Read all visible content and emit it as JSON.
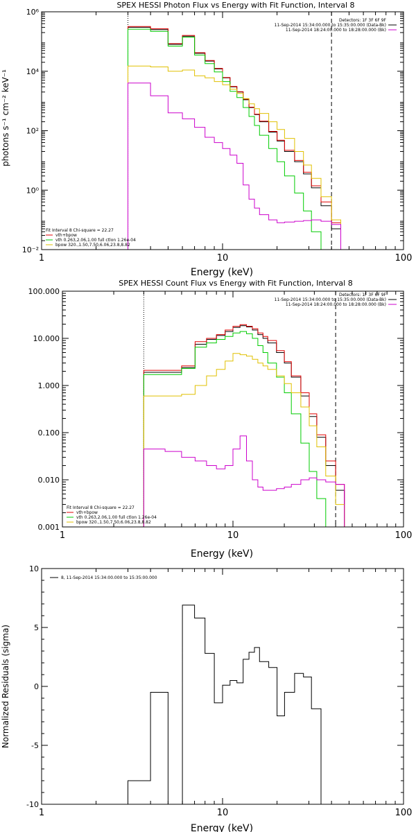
{
  "colors": {
    "data": "#000000",
    "total": "#e00000",
    "vth": "#00cc00",
    "bpow": "#e0c000",
    "bk": "#cc00cc"
  },
  "chart_data": [
    {
      "type": "line",
      "title": "SPEX HESSI Photon Flux vs Energy with Fit Function, Interval 8",
      "xlabel": "Energy (keV)",
      "ylabel": "photons s⁻¹ cm⁻² keV⁻¹",
      "xscale": "log",
      "yscale": "log",
      "xlim": [
        1,
        100
      ],
      "ylim": [
        0.01,
        1000000
      ],
      "xticks": [
        1,
        10,
        100
      ],
      "xtick_labels": [
        "1",
        "10",
        "100"
      ],
      "yticks": [
        0.01,
        1,
        100,
        10000,
        1000000
      ],
      "ytick_labels": [
        "10⁻²",
        "10⁰",
        "10²",
        "10⁴",
        "10⁶"
      ],
      "vlines": [
        {
          "x": 3,
          "style": "dotted"
        },
        {
          "x": 40,
          "style": "dashed"
        }
      ],
      "legend_top": {
        "header": "Detectors: 1F 3F 6F 9F",
        "entries": [
          "11-Sep-2014 15:34:00.000 to 15:35:00.000 (Data-Bk)",
          "11-Sep-2014 18:24:00.000 to 18:28:00.000 (Bk)"
        ]
      },
      "legend_bottom": {
        "header": "Fit Interval 8   Chi-square = 22.27",
        "entries": [
          "vth+bpow",
          "vth 0.263,2.06,1.00  full ctlon 1.26e-04",
          "bpow 320.,1.50,7.50,6.06,23.8,8.82"
        ]
      },
      "edges": [
        3,
        4,
        5,
        6,
        7,
        8,
        9,
        10,
        11,
        12,
        13,
        14,
        15,
        16,
        18,
        20,
        22,
        25,
        28,
        31,
        35,
        40,
        45,
        50
      ],
      "series": [
        {
          "key": "data",
          "values": [
            300000,
            250000,
            80000,
            150000,
            40000,
            22000,
            12000,
            6000,
            3000,
            2000,
            1100,
            600,
            350,
            200,
            90,
            45,
            20,
            9,
            3.5,
            1.2,
            0.3,
            0.05,
            null
          ]
        },
        {
          "key": "total",
          "values": [
            320000,
            270000,
            85000,
            160000,
            42000,
            23000,
            12500,
            6200,
            3100,
            2050,
            1150,
            620,
            360,
            210,
            95,
            48,
            22,
            10,
            4,
            1.4,
            0.4,
            0.08,
            0.01
          ]
        },
        {
          "key": "vth",
          "values": [
            260000,
            220000,
            70000,
            140000,
            35000,
            18000,
            9500,
            4500,
            2100,
            1300,
            600,
            300,
            150,
            70,
            25,
            9,
            3,
            0.8,
            0.2,
            0.04,
            0.01,
            null,
            null
          ]
        },
        {
          "key": "bpow",
          "values": [
            15000,
            14000,
            10000,
            11000,
            7000,
            6000,
            4500,
            3500,
            2500,
            1800,
            1200,
            800,
            550,
            380,
            200,
            110,
            55,
            20,
            7,
            2.5,
            0.6,
            0.1,
            0.01
          ]
        },
        {
          "key": "bk",
          "values": [
            4000,
            1500,
            400,
            250,
            130,
            60,
            40,
            25,
            15,
            8,
            1.5,
            0.5,
            0.25,
            0.15,
            0.1,
            0.08,
            0.085,
            0.09,
            0.095,
            0.1,
            0.09,
            0.07,
            null
          ]
        }
      ]
    },
    {
      "type": "line",
      "title": "SPEX HESSI Count Flux vs Energy with Fit Function, Interval 8",
      "xlabel": "Energy (keV)",
      "ylabel": "",
      "xscale": "log",
      "yscale": "log",
      "xlim": [
        1,
        100
      ],
      "ylim": [
        0.001,
        100
      ],
      "xticks": [
        1,
        10,
        100
      ],
      "xtick_labels": [
        "1",
        "10",
        "100"
      ],
      "yticks": [
        0.001,
        0.01,
        0.1,
        1,
        10,
        100
      ],
      "ytick_labels": [
        "0.001",
        "0.010",
        "0.100",
        "1.000",
        "10.000",
        "100.000"
      ],
      "vlines": [
        {
          "x": 3,
          "style": "dotted"
        },
        {
          "x": 40,
          "style": "dashed"
        }
      ],
      "legend_top": {
        "header": "Detectors: 1F 3F 6F 9F",
        "entries": [
          "11-Sep-2014 15:34:00.000 to 15:35:00.000 (Data-Bk)",
          "11-Sep-2014 18:24:00.000 to 18:28:00.000 (Bk)"
        ]
      },
      "legend_bottom": {
        "header": "Fit Interval 8   Chi-square = 22.27",
        "entries": [
          "vth+bpow",
          "vth 0.263,2.06,1.00  full ctlon 1.26e-04",
          "bpow 320.,1.50,7.50,6.06,23.8,8.82"
        ]
      },
      "edges": [
        3,
        4,
        5,
        6,
        7,
        8,
        9,
        10,
        11,
        12,
        13,
        14,
        15,
        16,
        18,
        20,
        22,
        25,
        28,
        31,
        35,
        40,
        45,
        50
      ],
      "series": [
        {
          "key": "data",
          "values": [
            1.9,
            1.9,
            2.4,
            7.5,
            9.5,
            11.5,
            14,
            17,
            18.5,
            17.5,
            15,
            12,
            10,
            8,
            5,
            3,
            1.5,
            0.6,
            0.22,
            0.08,
            0.02,
            0.006,
            null
          ]
        },
        {
          "key": "total",
          "values": [
            2.1,
            2.1,
            2.6,
            8.5,
            10,
            12,
            15,
            18,
            19.5,
            18,
            16,
            13,
            11,
            9,
            5.5,
            3.2,
            1.6,
            0.7,
            0.25,
            0.09,
            0.025,
            0.008,
            0.001
          ]
        },
        {
          "key": "vth",
          "values": [
            1.7,
            1.7,
            2.3,
            6.5,
            8,
            9.5,
            11,
            13,
            14,
            12.5,
            10,
            7,
            5,
            3,
            1.5,
            0.7,
            0.25,
            0.06,
            0.015,
            0.004,
            0.001,
            null,
            null
          ]
        },
        {
          "key": "bpow",
          "values": [
            0.6,
            0.6,
            0.65,
            1,
            1.6,
            2.2,
            3.3,
            4.8,
            4.5,
            4.2,
            3.6,
            3,
            2.6,
            2.2,
            1.6,
            1.1,
            0.7,
            0.35,
            0.14,
            0.05,
            0.012,
            0.003,
            0.001
          ]
        },
        {
          "key": "bk",
          "values": [
            0.045,
            0.04,
            0.03,
            0.025,
            0.02,
            0.017,
            0.02,
            0.045,
            0.085,
            0.025,
            0.01,
            0.007,
            0.006,
            0.006,
            0.0065,
            0.007,
            0.008,
            0.01,
            0.011,
            0.01,
            0.009,
            0.008,
            null
          ]
        }
      ]
    },
    {
      "type": "line",
      "title": "",
      "xlabel": "Energy (keV)",
      "ylabel": "Normalized Residuals (sigma)",
      "xscale": "log",
      "yscale": "linear",
      "xlim": [
        1,
        100
      ],
      "ylim": [
        -10,
        10
      ],
      "xticks": [
        1,
        10,
        100
      ],
      "xtick_labels": [
        "1",
        "10",
        "100"
      ],
      "yticks": [
        -10,
        -5,
        0,
        5,
        10
      ],
      "ytick_labels": [
        "-10",
        "-5",
        "0",
        "5",
        "10"
      ],
      "legend": {
        "entries": [
          "8, 11-Sep-2014 15:34:00.000 to 15:35:00.000"
        ]
      },
      "edges": [
        3,
        4,
        5,
        6,
        7,
        8,
        9,
        10,
        11,
        12,
        13,
        14,
        15,
        16,
        18,
        20,
        22,
        25,
        28,
        31,
        35,
        40
      ],
      "series": [
        {
          "key": "data",
          "values": [
            -8,
            -0.5,
            -10,
            6.9,
            5.8,
            2.8,
            -1.4,
            0.1,
            0.5,
            0.3,
            2.3,
            2.9,
            3.3,
            2.1,
            1.6,
            -2.5,
            -0.5,
            1.1,
            0.8,
            -1.9,
            -10
          ]
        }
      ]
    }
  ]
}
